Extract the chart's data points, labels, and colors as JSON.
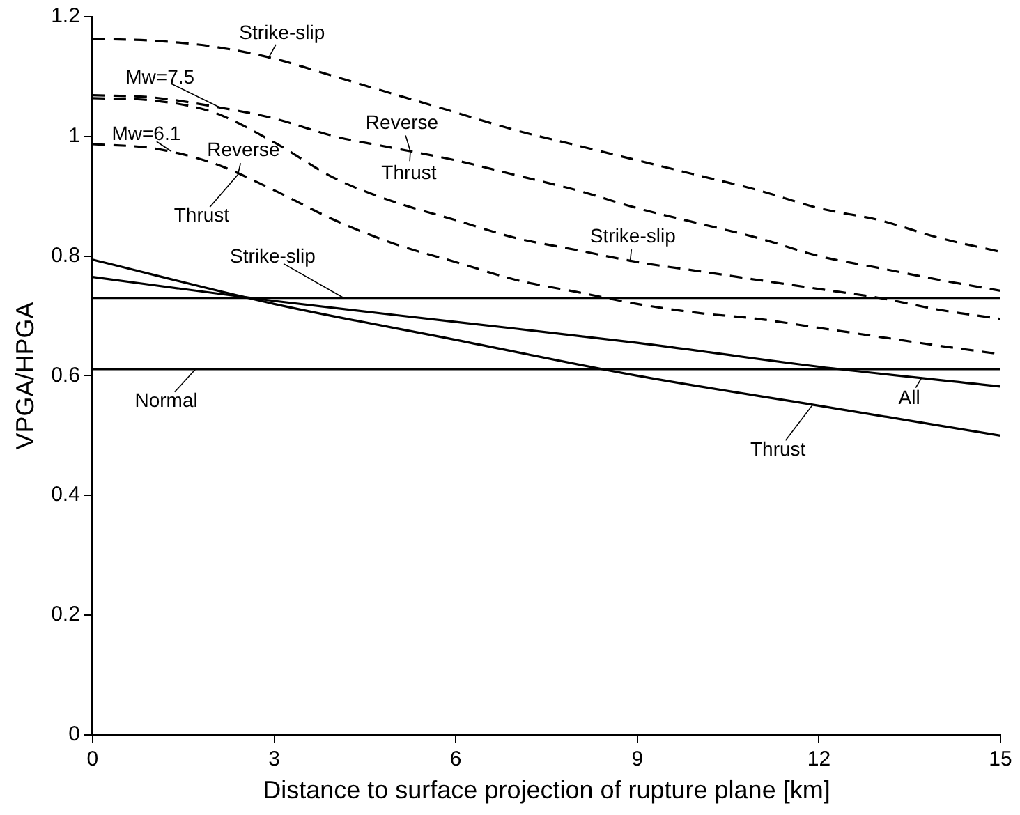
{
  "chart_data": {
    "type": "line",
    "xlabel": "Distance to surface projection of rupture plane [km]",
    "ylabel": "VPGA/HPGA",
    "xlim": [
      0,
      15
    ],
    "xticks": [
      0,
      3,
      6,
      9,
      12,
      15
    ],
    "ylim": [
      0,
      1.2
    ],
    "yticks": [
      0,
      0.2,
      0.4,
      0.6,
      0.8,
      1,
      1.2
    ],
    "grid": false,
    "legend": false,
    "marker": "none",
    "x": [
      0,
      1,
      2,
      3,
      4,
      5,
      6,
      7,
      8,
      9,
      10,
      11,
      12,
      13,
      14,
      15
    ],
    "series": [
      {
        "color": "#000000",
        "line_style": "dashed",
        "values": [
          1.163,
          1.16,
          1.15,
          1.13,
          1.1,
          1.07,
          1.04,
          1.01,
          0.985,
          0.96,
          0.935,
          0.91,
          0.88,
          0.86,
          0.83,
          0.807
        ]
      },
      {
        "color": "#000000",
        "line_style": "dashed",
        "values": [
          1.069,
          1.065,
          1.05,
          1.03,
          1.0,
          0.98,
          0.96,
          0.935,
          0.91,
          0.88,
          0.855,
          0.83,
          0.8,
          0.78,
          0.76,
          0.742
        ]
      },
      {
        "color": "#000000",
        "line_style": "dashed",
        "values": [
          1.064,
          1.06,
          1.04,
          0.99,
          0.93,
          0.89,
          0.86,
          0.83,
          0.81,
          0.79,
          0.775,
          0.76,
          0.745,
          0.73,
          0.71,
          0.695
        ]
      },
      {
        "color": "#000000",
        "line_style": "dashed",
        "values": [
          0.987,
          0.98,
          0.955,
          0.91,
          0.86,
          0.82,
          0.79,
          0.76,
          0.74,
          0.72,
          0.705,
          0.695,
          0.68,
          0.665,
          0.65,
          0.636
        ]
      },
      {
        "color": "#000000",
        "line_style": "solid",
        "x": [
          0,
          15
        ],
        "values": [
          0.73,
          0.73
        ]
      },
      {
        "color": "#000000",
        "line_style": "solid",
        "x": [
          0,
          15
        ],
        "values": [
          0.611,
          0.611
        ]
      },
      {
        "color": "#000000",
        "line_style": "solid",
        "x": [
          0,
          3,
          6,
          9,
          12,
          15
        ],
        "values": [
          0.794,
          0.72,
          0.66,
          0.6,
          0.55,
          0.5
        ]
      },
      {
        "color": "#000000",
        "line_style": "solid",
        "x": [
          0,
          3,
          6,
          9,
          12,
          15
        ],
        "values": [
          0.765,
          0.725,
          0.69,
          0.655,
          0.615,
          0.582
        ]
      }
    ],
    "annotations": [
      {
        "text": "Strike-slip",
        "x": 2.9,
        "y": 1.13
      },
      {
        "text": "Mw=7.5",
        "x": 2.15,
        "y": 1.046
      },
      {
        "text": "Mw=6.1",
        "x": 1.3,
        "y": 0.975
      },
      {
        "text": "Reverse",
        "x": 5.25,
        "y": 0.975
      },
      {
        "text": "Thrust",
        "x": 5.25,
        "y": 0.975
      },
      {
        "text": "Reverse",
        "x": 2.4,
        "y": 0.936
      },
      {
        "text": "Thrust",
        "x": 2.4,
        "y": 0.936
      },
      {
        "text": "Strike-slip",
        "x": 8.88,
        "y": 0.79
      },
      {
        "text": "Strike-slip",
        "x": 4.15,
        "y": 0.73
      },
      {
        "text": "Normal",
        "x": 1.7,
        "y": 0.611
      },
      {
        "text": "All",
        "x": 13.7,
        "y": 0.597
      },
      {
        "text": "Thrust",
        "x": 11.9,
        "y": 0.552
      }
    ]
  }
}
